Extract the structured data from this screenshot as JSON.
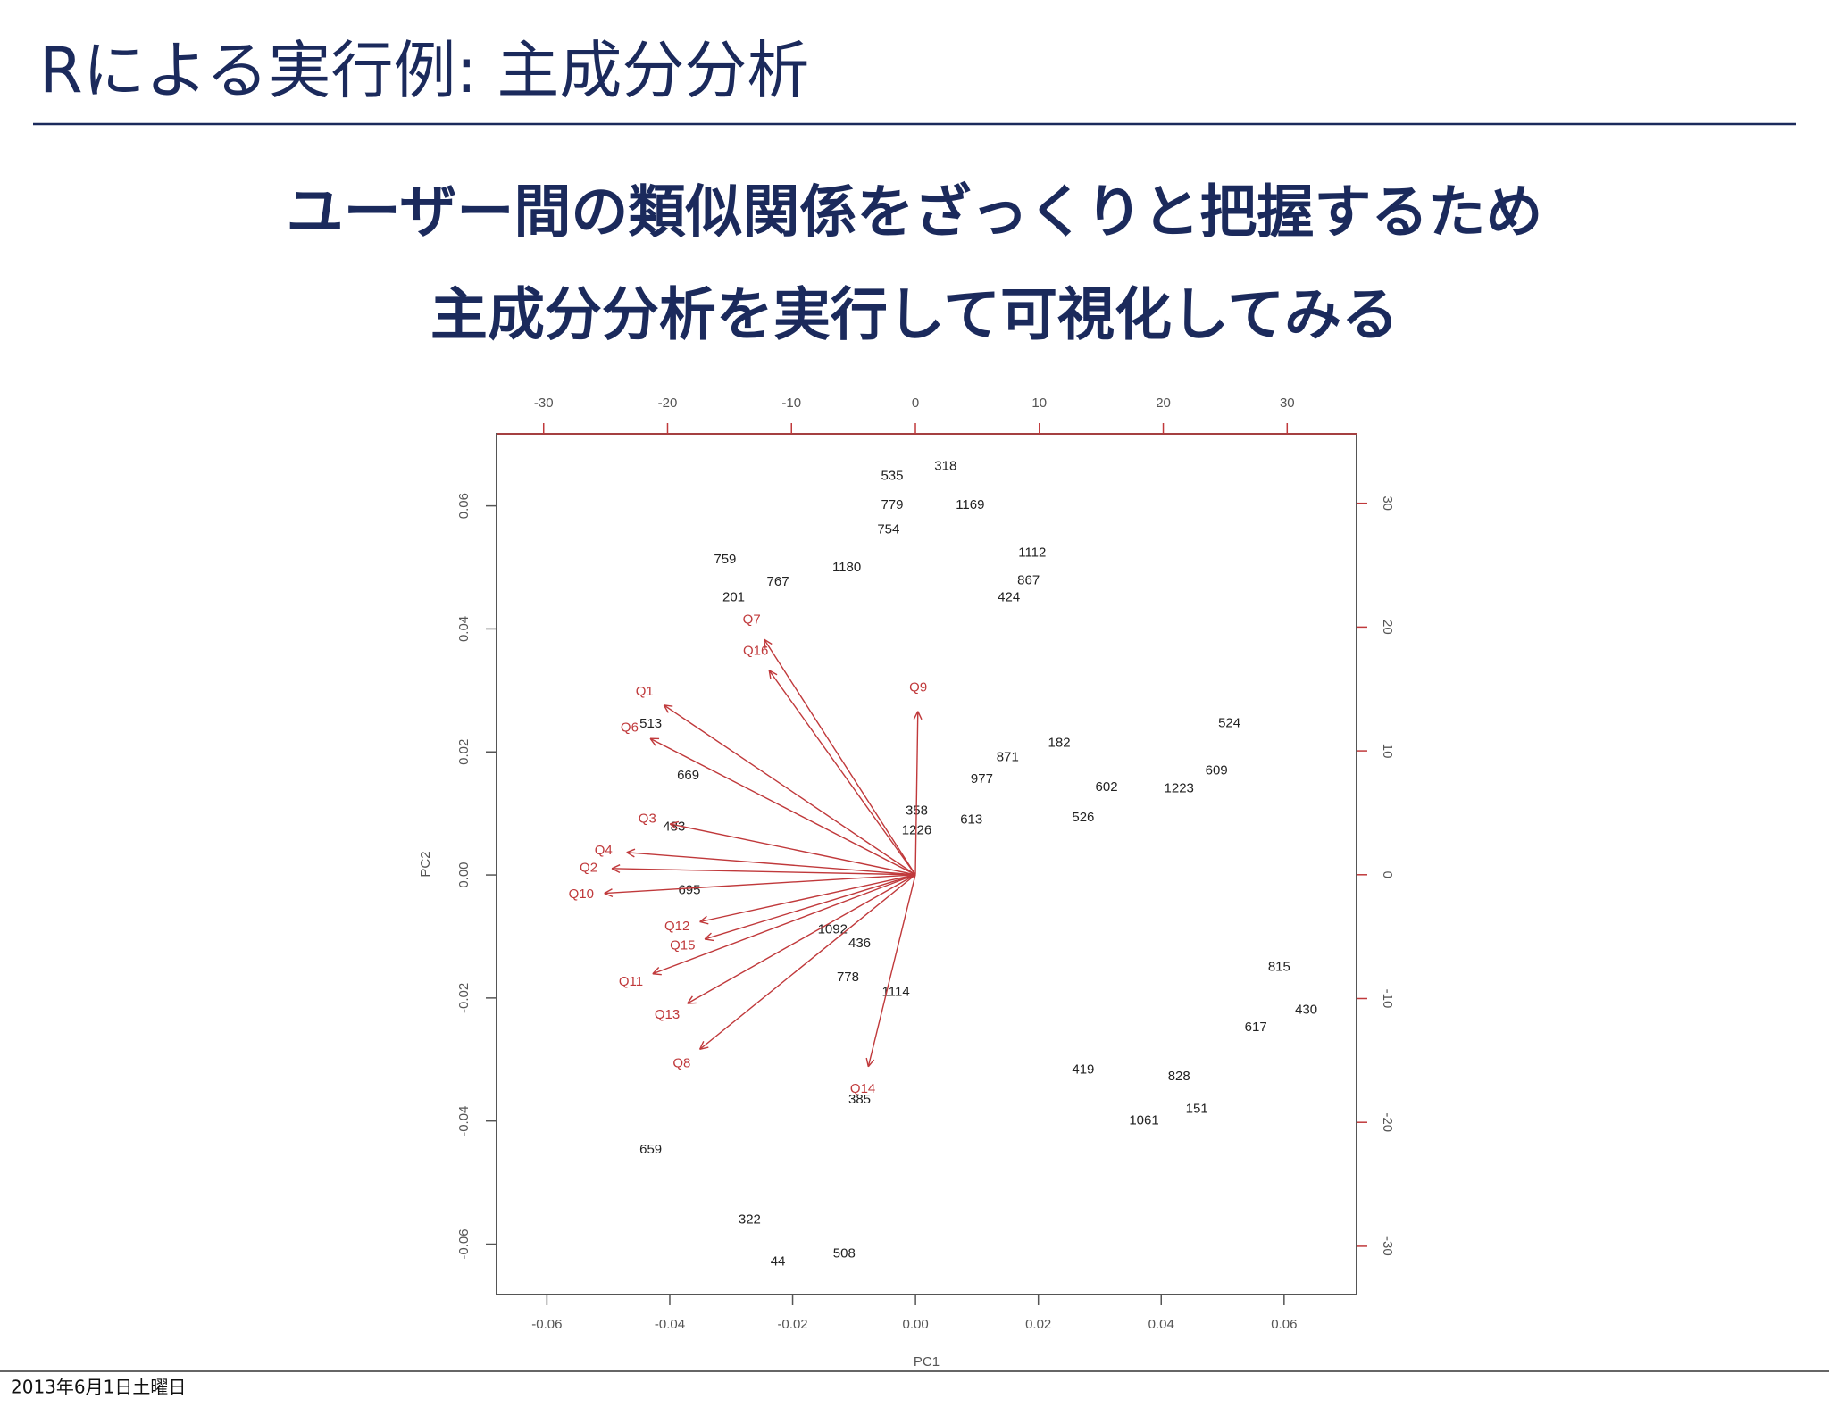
{
  "slide": {
    "title": "Rによる実行例: 主成分分析",
    "headings": [
      "ユーザー間の類似関係をざっくりと把握するため",
      "主成分分析を実行して可視化してみる"
    ],
    "footer_date": "2013年6月1日土曜日"
  },
  "chart_data": {
    "type": "biplot",
    "xlabel": "PC1",
    "ylabel": "PC2",
    "xlim": [
      -0.0682,
      0.0718
    ],
    "ylim": [
      -0.0682,
      0.0717
    ],
    "xticks": [
      {
        "value": -0.06,
        "label": "-0.06"
      },
      {
        "value": -0.04,
        "label": "-0.04"
      },
      {
        "value": -0.02,
        "label": "-0.02"
      },
      {
        "value": 0,
        "label": "0.00"
      },
      {
        "value": 0.02,
        "label": "0.02"
      },
      {
        "value": 0.04,
        "label": "0.04"
      },
      {
        "value": 0.06,
        "label": "0.06"
      }
    ],
    "yticks": [
      {
        "value": -0.06,
        "label": "-0.06"
      },
      {
        "value": -0.04,
        "label": "-0.04"
      },
      {
        "value": -0.02,
        "label": "-0.02"
      },
      {
        "value": 0,
        "label": "0.00"
      },
      {
        "value": 0.02,
        "label": "0.02"
      },
      {
        "value": 0.04,
        "label": "0.04"
      },
      {
        "value": 0.06,
        "label": "0.06"
      }
    ],
    "x2lim": [
      -33.8,
      35.6
    ],
    "x2ticks": [
      -30,
      -20,
      -10,
      0,
      10,
      20,
      30
    ],
    "y2lim": [
      -33.9,
      35.6
    ],
    "y2ticks": [
      -30,
      -20,
      -10,
      0,
      10,
      20,
      30
    ],
    "points": {
      "color": "#222222",
      "labels": [
        "535",
        "318",
        "779",
        "1169",
        "1112",
        "867",
        "759",
        "767",
        "201",
        "513",
        "669",
        "182",
        "871",
        "977",
        "613",
        "358",
        "1226",
        "524",
        "609",
        "1223",
        "602",
        "526",
        "430",
        "617",
        "815",
        "828",
        "419",
        "1061",
        "151",
        "659",
        "44",
        "508",
        "322",
        "385",
        "1114",
        "778",
        "436",
        "1092",
        "695",
        "483",
        "1180",
        "754",
        "424"
      ],
      "x": [
        -0.0038,
        0.0049,
        -0.0038,
        0.0089,
        0.019,
        0.0184,
        -0.031,
        -0.0224,
        -0.0296,
        -0.0431,
        -0.037,
        0.0234,
        0.015,
        0.0108,
        0.0091,
        0.0002,
        0.0002,
        0.0511,
        0.049,
        0.0429,
        0.0311,
        0.0273,
        0.0636,
        0.0554,
        0.0592,
        0.0429,
        0.0273,
        0.0372,
        0.0458,
        -0.0431,
        -0.0224,
        -0.0116,
        -0.027,
        -0.0091,
        -0.0032,
        -0.011,
        -0.0091,
        -0.0135,
        -0.0368,
        -0.0393,
        -0.0112,
        -0.0044,
        0.0152
      ],
      "y": [
        0.0648,
        0.0664,
        0.0601,
        0.0601,
        0.0523,
        0.0478,
        0.0512,
        0.0476,
        0.0451,
        0.0245,
        0.0161,
        0.0214,
        0.0191,
        0.0155,
        0.0089,
        0.0104,
        0.0072,
        0.0246,
        0.0169,
        0.014,
        0.0142,
        0.0093,
        -0.022,
        -0.0248,
        -0.015,
        -0.0328,
        -0.0317,
        -0.04,
        -0.0381,
        -0.0447,
        -0.0629,
        -0.0616,
        -0.0561,
        -0.0366,
        -0.0191,
        -0.0167,
        -0.0112,
        -0.0089,
        -0.0025,
        0.0078,
        0.0499,
        0.0561,
        0.0451
      ]
    },
    "loadings": {
      "color": "#c0393b",
      "labels": [
        "Q1",
        "Q6",
        "Q3",
        "Q4",
        "Q2",
        "Q10",
        "Q11",
        "Q13",
        "Q8",
        "Q14",
        "Q7",
        "Q16",
        "Q12",
        "Q15",
        "Q9"
      ],
      "x": [
        -20.3,
        -21.4,
        -19.8,
        -23.3,
        -24.5,
        -25.1,
        -21.2,
        -18.4,
        -17.4,
        -3.8,
        -12.2,
        -11.8,
        -17.4,
        -17.0,
        0.2
      ],
      "y": [
        13.7,
        11.0,
        4.1,
        1.8,
        0.5,
        -1.5,
        -8.0,
        -10.4,
        -14.1,
        -15.5,
        19.0,
        16.5,
        -3.8,
        -5.2,
        13.2
      ]
    }
  }
}
